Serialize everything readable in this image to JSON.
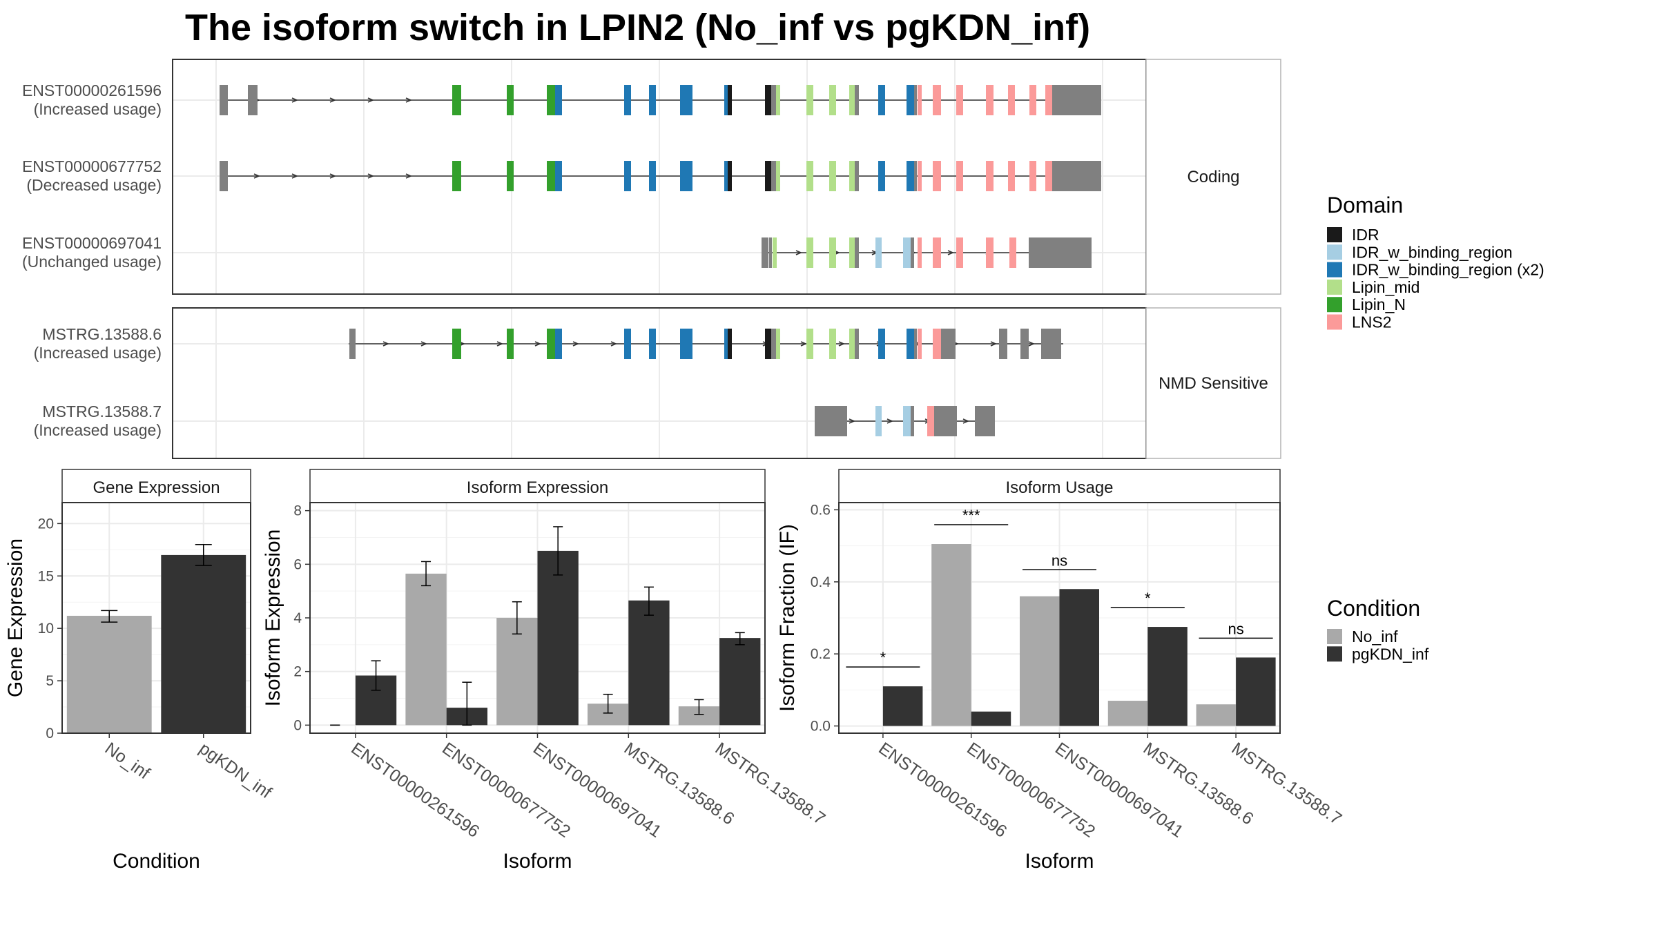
{
  "title": "The isoform switch in LPIN2 (No_inf vs pgKDN_inf)",
  "colors": {
    "IDR": "#1a1a1a",
    "IDR_w_binding_region": "#a6cee3",
    "IDR_w_binding_region (x2)": "#1f78b4",
    "Lipin_mid": "#b2df8a",
    "Lipin_N": "#33a02c",
    "LNS2": "#fb9a99",
    "noncoding": "#808080",
    "No_inf": "#a9a9a9",
    "pgKDN_inf": "#333333"
  },
  "structure": {
    "facets": [
      {
        "label": "Coding",
        "isoforms": [
          {
            "id": "ENST00000261596",
            "usage": "(Increased usage)"
          },
          {
            "id": "ENST00000677752",
            "usage": "(Decreased usage)"
          },
          {
            "id": "ENST00000697041",
            "usage": "(Unchanged usage)"
          }
        ]
      },
      {
        "label": "NMD Sensitive",
        "isoforms": [
          {
            "id": "MSTRG.13588.6",
            "usage": "(Increased usage)"
          },
          {
            "id": "MSTRG.13588.7",
            "usage": "(Increased usage)"
          }
        ]
      }
    ]
  },
  "legend_domain": {
    "title": "Domain",
    "items": [
      "IDR",
      "IDR_w_binding_region",
      "IDR_w_binding_region (x2)",
      "Lipin_mid",
      "Lipin_N",
      "LNS2"
    ]
  },
  "legend_condition": {
    "title": "Condition",
    "items": [
      "No_inf",
      "pgKDN_inf"
    ]
  },
  "chart_data": [
    {
      "type": "bar",
      "panel": "Gene Expression",
      "categories": [
        "No_inf",
        "pgKDN_inf"
      ],
      "values": [
        11.2,
        17.0
      ],
      "errors": [
        [
          10.6,
          11.7
        ],
        [
          16.0,
          18.0
        ]
      ],
      "xlabel": "Condition",
      "ylabel": "Gene Expression",
      "ylim": [
        0,
        22
      ],
      "yticks": [
        0,
        5,
        10,
        15,
        20
      ]
    },
    {
      "type": "bar",
      "panel": "Isoform Expression",
      "categories": [
        "ENST00000261596",
        "ENST00000677752",
        "ENST00000697041",
        "MSTRG.13588.6",
        "MSTRG.13588.7"
      ],
      "series": [
        {
          "name": "No_inf",
          "values": [
            0.0,
            5.65,
            4.0,
            0.8,
            0.7
          ],
          "errors": [
            [
              0.0,
              0.0
            ],
            [
              5.2,
              6.1
            ],
            [
              3.4,
              4.6
            ],
            [
              0.45,
              1.15
            ],
            [
              0.4,
              0.95
            ]
          ]
        },
        {
          "name": "pgKDN_inf",
          "values": [
            1.85,
            0.65,
            6.5,
            4.65,
            3.25
          ],
          "errors": [
            [
              1.3,
              2.4
            ],
            [
              0.0,
              1.6
            ],
            [
              5.6,
              7.4
            ],
            [
              4.1,
              5.15
            ],
            [
              3.0,
              3.45
            ]
          ]
        }
      ],
      "xlabel": "Isoform",
      "ylabel": "Isoform Expression",
      "ylim": [
        -0.3,
        8.3
      ],
      "yticks": [
        0,
        2,
        4,
        6,
        8
      ]
    },
    {
      "type": "bar",
      "panel": "Isoform Usage",
      "categories": [
        "ENST00000261596",
        "ENST00000677752",
        "ENST00000697041",
        "MSTRG.13588.6",
        "MSTRG.13588.7"
      ],
      "series": [
        {
          "name": "No_inf",
          "values": [
            0.0,
            0.505,
            0.36,
            0.07,
            0.06
          ]
        },
        {
          "name": "pgKDN_inf",
          "values": [
            0.11,
            0.04,
            0.38,
            0.275,
            0.19
          ]
        }
      ],
      "significance": [
        "*",
        "***",
        "ns",
        "*",
        "ns"
      ],
      "xlabel": "Isoform",
      "ylabel": "Isoform Fraction (IF)",
      "ylim": [
        -0.02,
        0.62
      ],
      "yticks": [
        0.0,
        0.2,
        0.4,
        0.6
      ]
    }
  ]
}
